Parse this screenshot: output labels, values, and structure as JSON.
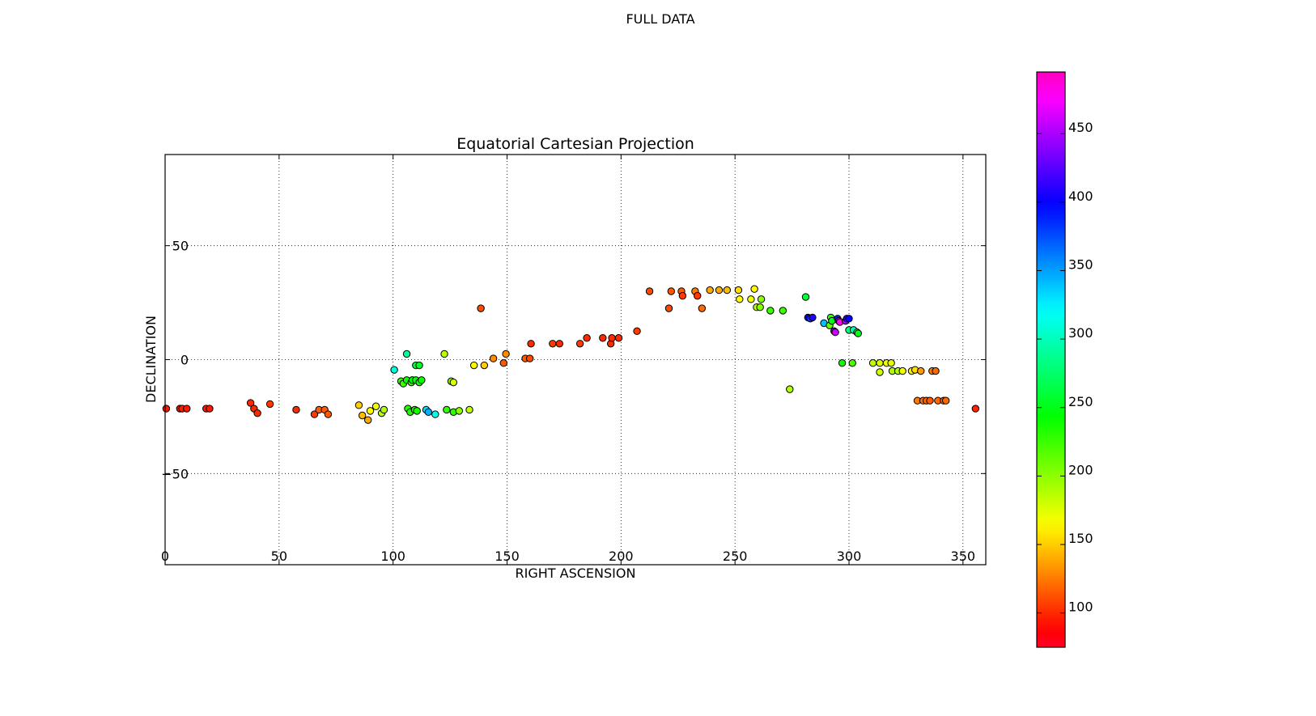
{
  "chart_data": {
    "type": "scatter",
    "suptitle": "FULL DATA",
    "title": "Equatorial Cartesian Projection",
    "xlabel": "RIGHT ASCENSION",
    "ylabel": "DECLINATION",
    "xlim": [
      0,
      360
    ],
    "ylim": [
      -90,
      90
    ],
    "x_ticks": [
      0,
      50,
      100,
      150,
      200,
      250,
      300,
      350
    ],
    "y_ticks": [
      -50,
      0,
      50
    ],
    "x_tick_labels": [
      "0",
      "50",
      "100",
      "150",
      "200",
      "250",
      "300",
      "350"
    ],
    "y_tick_labels": [
      "−50",
      "0",
      "50"
    ],
    "grid": true,
    "grid_style": "dotted",
    "colormap": "gist_rainbow",
    "colorbar": {
      "range": [
        75,
        495
      ],
      "ticks": [
        100,
        150,
        200,
        250,
        300,
        350,
        400,
        450
      ],
      "tick_labels": [
        "100",
        "150",
        "200",
        "250",
        "300",
        "350",
        "400",
        "450"
      ]
    },
    "points": [
      {
        "x": 0.5,
        "y": -21.5,
        "c": 95
      },
      {
        "x": 6.5,
        "y": -21.5,
        "c": 95
      },
      {
        "x": 7.5,
        "y": -21.5,
        "c": 96
      },
      {
        "x": 9.5,
        "y": -21.5,
        "c": 95
      },
      {
        "x": 18.0,
        "y": -21.5,
        "c": 95
      },
      {
        "x": 19.5,
        "y": -21.5,
        "c": 95
      },
      {
        "x": 37.5,
        "y": -19.0,
        "c": 100
      },
      {
        "x": 39.0,
        "y": -21.5,
        "c": 100
      },
      {
        "x": 40.5,
        "y": -23.5,
        "c": 100
      },
      {
        "x": 46.0,
        "y": -19.5,
        "c": 105
      },
      {
        "x": 57.5,
        "y": -22.0,
        "c": 100
      },
      {
        "x": 65.5,
        "y": -24.0,
        "c": 105
      },
      {
        "x": 67.5,
        "y": -22.0,
        "c": 115
      },
      {
        "x": 70.0,
        "y": -22.0,
        "c": 115
      },
      {
        "x": 71.5,
        "y": -24.0,
        "c": 115
      },
      {
        "x": 85.0,
        "y": -20.0,
        "c": 150
      },
      {
        "x": 86.5,
        "y": -24.5,
        "c": 145
      },
      {
        "x": 89.0,
        "y": -26.5,
        "c": 140
      },
      {
        "x": 90.0,
        "y": -22.5,
        "c": 165
      },
      {
        "x": 92.5,
        "y": -20.5,
        "c": 170
      },
      {
        "x": 95.0,
        "y": -23.5,
        "c": 185
      },
      {
        "x": 96.0,
        "y": -22.0,
        "c": 190
      },
      {
        "x": 100.5,
        "y": -4.5,
        "c": 310
      },
      {
        "x": 103.5,
        "y": -9.5,
        "c": 230
      },
      {
        "x": 104.5,
        "y": -10.5,
        "c": 225
      },
      {
        "x": 106.0,
        "y": -9.0,
        "c": 240
      },
      {
        "x": 106.0,
        "y": 2.5,
        "c": 290
      },
      {
        "x": 106.5,
        "y": -21.5,
        "c": 230
      },
      {
        "x": 107.5,
        "y": -23.0,
        "c": 235
      },
      {
        "x": 108.0,
        "y": -10.0,
        "c": 225
      },
      {
        "x": 108.5,
        "y": -9.0,
        "c": 245
      },
      {
        "x": 109.5,
        "y": -22.0,
        "c": 240
      },
      {
        "x": 110.0,
        "y": -9.0,
        "c": 250
      },
      {
        "x": 110.0,
        "y": -2.5,
        "c": 260
      },
      {
        "x": 110.5,
        "y": -22.5,
        "c": 235
      },
      {
        "x": 111.5,
        "y": -2.5,
        "c": 255
      },
      {
        "x": 111.5,
        "y": -10.0,
        "c": 240
      },
      {
        "x": 112.5,
        "y": -9.0,
        "c": 240
      },
      {
        "x": 114.5,
        "y": -22.0,
        "c": 330
      },
      {
        "x": 115.5,
        "y": -23.0,
        "c": 345
      },
      {
        "x": 118.5,
        "y": -24.0,
        "c": 315
      },
      {
        "x": 122.5,
        "y": 2.5,
        "c": 185
      },
      {
        "x": 123.5,
        "y": -22.0,
        "c": 230
      },
      {
        "x": 125.5,
        "y": -9.5,
        "c": 200
      },
      {
        "x": 126.5,
        "y": -10.0,
        "c": 175
      },
      {
        "x": 126.5,
        "y": -23.0,
        "c": 230
      },
      {
        "x": 129.0,
        "y": -22.5,
        "c": 200
      },
      {
        "x": 133.5,
        "y": -22.0,
        "c": 185
      },
      {
        "x": 135.5,
        "y": -2.5,
        "c": 165
      },
      {
        "x": 138.5,
        "y": 22.5,
        "c": 110
      },
      {
        "x": 140.0,
        "y": -2.5,
        "c": 150
      },
      {
        "x": 144.0,
        "y": 0.5,
        "c": 130
      },
      {
        "x": 148.5,
        "y": -1.5,
        "c": 115
      },
      {
        "x": 149.5,
        "y": 2.5,
        "c": 130
      },
      {
        "x": 158.0,
        "y": 0.5,
        "c": 115
      },
      {
        "x": 160.0,
        "y": 0.5,
        "c": 110
      },
      {
        "x": 160.5,
        "y": 7.0,
        "c": 100
      },
      {
        "x": 170.0,
        "y": 7.0,
        "c": 105
      },
      {
        "x": 173.0,
        "y": 7.0,
        "c": 100
      },
      {
        "x": 182.0,
        "y": 7.0,
        "c": 105
      },
      {
        "x": 185.0,
        "y": 9.5,
        "c": 100
      },
      {
        "x": 192.0,
        "y": 9.5,
        "c": 100
      },
      {
        "x": 195.5,
        "y": 7.0,
        "c": 100
      },
      {
        "x": 196.0,
        "y": 9.5,
        "c": 100
      },
      {
        "x": 199.0,
        "y": 9.5,
        "c": 100
      },
      {
        "x": 207.0,
        "y": 12.5,
        "c": 105
      },
      {
        "x": 212.5,
        "y": 30.0,
        "c": 110
      },
      {
        "x": 221.0,
        "y": 22.5,
        "c": 110
      },
      {
        "x": 222.0,
        "y": 30.0,
        "c": 115
      },
      {
        "x": 226.5,
        "y": 30.0,
        "c": 115
      },
      {
        "x": 227.0,
        "y": 28.0,
        "c": 105
      },
      {
        "x": 232.5,
        "y": 30.0,
        "c": 125
      },
      {
        "x": 233.5,
        "y": 28.0,
        "c": 105
      },
      {
        "x": 235.5,
        "y": 22.5,
        "c": 120
      },
      {
        "x": 239.0,
        "y": 30.5,
        "c": 140
      },
      {
        "x": 243.0,
        "y": 30.5,
        "c": 140
      },
      {
        "x": 246.5,
        "y": 30.5,
        "c": 145
      },
      {
        "x": 251.5,
        "y": 30.5,
        "c": 155
      },
      {
        "x": 252.0,
        "y": 26.5,
        "c": 165
      },
      {
        "x": 257.0,
        "y": 26.5,
        "c": 170
      },
      {
        "x": 258.5,
        "y": 31.0,
        "c": 165
      },
      {
        "x": 259.5,
        "y": 23.0,
        "c": 185
      },
      {
        "x": 261.0,
        "y": 23.0,
        "c": 200
      },
      {
        "x": 261.5,
        "y": 26.5,
        "c": 200
      },
      {
        "x": 265.5,
        "y": 21.5,
        "c": 225
      },
      {
        "x": 271.0,
        "y": 21.5,
        "c": 225
      },
      {
        "x": 274.0,
        "y": -13.0,
        "c": 190
      },
      {
        "x": 281.0,
        "y": 27.5,
        "c": 260
      },
      {
        "x": 282.0,
        "y": 18.5,
        "c": 400
      },
      {
        "x": 283.0,
        "y": 18.0,
        "c": 380
      },
      {
        "x": 284.0,
        "y": 18.5,
        "c": 410
      },
      {
        "x": 289.0,
        "y": 16.0,
        "c": 340
      },
      {
        "x": 291.5,
        "y": 15.0,
        "c": 215
      },
      {
        "x": 292.0,
        "y": 18.5,
        "c": 230
      },
      {
        "x": 292.5,
        "y": 17.0,
        "c": 250
      },
      {
        "x": 293.5,
        "y": 12.5,
        "c": 440
      },
      {
        "x": 294.0,
        "y": 12.0,
        "c": 460
      },
      {
        "x": 295.0,
        "y": 18.0,
        "c": 390
      },
      {
        "x": 295.5,
        "y": 17.0,
        "c": 440
      },
      {
        "x": 296.0,
        "y": 16.5,
        "c": 480
      },
      {
        "x": 297.0,
        "y": -1.5,
        "c": 240
      },
      {
        "x": 298.5,
        "y": 17.0,
        "c": 450
      },
      {
        "x": 299.0,
        "y": 18.0,
        "c": 410
      },
      {
        "x": 300.0,
        "y": 18.0,
        "c": 400
      },
      {
        "x": 300.0,
        "y": 13.0,
        "c": 280
      },
      {
        "x": 301.5,
        "y": -1.5,
        "c": 220
      },
      {
        "x": 302.0,
        "y": 13.0,
        "c": 300
      },
      {
        "x": 303.5,
        "y": 12.0,
        "c": 270
      },
      {
        "x": 304.0,
        "y": 11.5,
        "c": 250
      },
      {
        "x": 310.5,
        "y": -1.5,
        "c": 185
      },
      {
        "x": 313.5,
        "y": -1.5,
        "c": 175
      },
      {
        "x": 313.5,
        "y": -5.5,
        "c": 180
      },
      {
        "x": 316.5,
        "y": -1.5,
        "c": 170
      },
      {
        "x": 318.5,
        "y": -1.5,
        "c": 175
      },
      {
        "x": 319.0,
        "y": -5.0,
        "c": 190
      },
      {
        "x": 321.5,
        "y": -5.0,
        "c": 190
      },
      {
        "x": 323.5,
        "y": -5.0,
        "c": 170
      },
      {
        "x": 327.5,
        "y": -5.0,
        "c": 160
      },
      {
        "x": 329.0,
        "y": -4.5,
        "c": 155
      },
      {
        "x": 330.0,
        "y": -18.0,
        "c": 125
      },
      {
        "x": 331.5,
        "y": -5.0,
        "c": 135
      },
      {
        "x": 332.5,
        "y": -18.0,
        "c": 120
      },
      {
        "x": 334.0,
        "y": -18.0,
        "c": 120
      },
      {
        "x": 335.5,
        "y": -18.0,
        "c": 115
      },
      {
        "x": 336.5,
        "y": -5.0,
        "c": 125
      },
      {
        "x": 338.0,
        "y": -5.0,
        "c": 120
      },
      {
        "x": 339.0,
        "y": -18.0,
        "c": 120
      },
      {
        "x": 341.5,
        "y": -18.0,
        "c": 115
      },
      {
        "x": 342.5,
        "y": -18.0,
        "c": 120
      },
      {
        "x": 355.5,
        "y": -21.5,
        "c": 98
      }
    ]
  }
}
